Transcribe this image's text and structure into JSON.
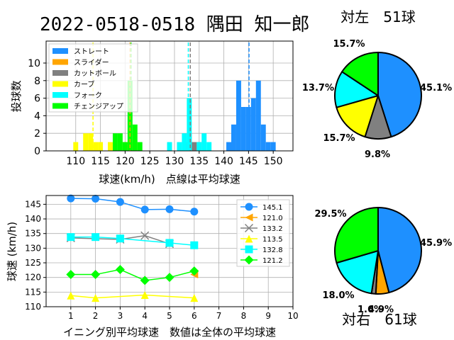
{
  "title": "2022-0518-0518 隅田 知一郎",
  "colors": {
    "straight": "#1e90ff",
    "slider": "#ffa500",
    "cutball": "#808080",
    "curve": "#ffff00",
    "fork": "#00ffff",
    "changeup": "#00ff00"
  },
  "chart_data": [
    {
      "id": "histogram",
      "type": "bar",
      "xlabel": "球速(km/h)　点線は平均球速",
      "ylabel": "投球数",
      "xlim": [
        104,
        154
      ],
      "ylim": [
        0,
        12.5
      ],
      "xticks": [
        110,
        115,
        120,
        125,
        130,
        135,
        140,
        145,
        150
      ],
      "yticks": [
        0,
        2,
        4,
        6,
        8,
        10
      ],
      "legend_position": "top-left",
      "grid": true,
      "series": [
        {
          "name": "ストレート",
          "color_key": "straight",
          "mean": 145.1,
          "bins": [
            [
              141,
              1
            ],
            [
              142,
              3
            ],
            [
              143,
              8
            ],
            [
              144,
              5
            ],
            [
              145,
              5
            ],
            [
              146,
              6
            ],
            [
              147,
              8
            ],
            [
              148,
              3
            ],
            [
              149,
              1
            ],
            [
              150,
              1
            ]
          ]
        },
        {
          "name": "スライダー",
          "color_key": "slider",
          "mean": 121.0,
          "bins": [
            [
              120,
              1
            ],
            [
              121,
              1
            ],
            [
              122,
              1
            ]
          ]
        },
        {
          "name": "カットボール",
          "color_key": "cutball",
          "mean": 133.2,
          "bins": [
            [
              132,
              1
            ],
            [
              133,
              2
            ],
            [
              134,
              1
            ],
            [
              135,
              1
            ]
          ]
        },
        {
          "name": "カーブ",
          "color_key": "curve",
          "mean": 113.5,
          "bins": [
            [
              110,
              1
            ],
            [
              112,
              2
            ],
            [
              113,
              2
            ],
            [
              114,
              1
            ],
            [
              115,
              1
            ],
            [
              117,
              1
            ]
          ]
        },
        {
          "name": "フォーク",
          "color_key": "fork",
          "mean": 132.8,
          "bins": [
            [
              129,
              1
            ],
            [
              131,
              1
            ],
            [
              132,
              2
            ],
            [
              133,
              6
            ],
            [
              135,
              1
            ],
            [
              136,
              2
            ],
            [
              137,
              1
            ]
          ]
        },
        {
          "name": "チェンジアップ",
          "color_key": "changeup",
          "mean": 121.2,
          "bins": [
            [
              118,
              2
            ],
            [
              119,
              2
            ],
            [
              120,
              1
            ],
            [
              121,
              8
            ],
            [
              122,
              3
            ],
            [
              123,
              1
            ]
          ]
        }
      ]
    },
    {
      "id": "inning-averages",
      "type": "line",
      "xlabel": "イニング別平均球速　数値は全体の平均球速",
      "ylabel": "球速 (km/h)",
      "xlim": [
        0,
        10
      ],
      "ylim": [
        110,
        148
      ],
      "xticks": [
        1,
        2,
        3,
        4,
        5,
        6,
        7,
        8,
        9,
        10
      ],
      "yticks": [
        110,
        115,
        120,
        125,
        130,
        135,
        140,
        145
      ],
      "legend_position": "top-right",
      "grid": true,
      "series": [
        {
          "name": "145.1",
          "color_key": "straight",
          "marker": "circle",
          "points": [
            [
              1,
              147.0
            ],
            [
              2,
              146.9
            ],
            [
              3,
              145.8
            ],
            [
              4,
              143.2
            ],
            [
              5,
              143.3
            ],
            [
              6,
              142.5
            ]
          ]
        },
        {
          "name": "121.0",
          "color_key": "slider",
          "marker": "triangle-left",
          "points": [
            [
              6,
              121.0
            ]
          ]
        },
        {
          "name": "133.2",
          "color_key": "cutball",
          "marker": "x",
          "points": [
            [
              1,
              133.5
            ],
            [
              3,
              133.0
            ],
            [
              4,
              134.3
            ],
            [
              5,
              131.5
            ]
          ]
        },
        {
          "name": "113.5",
          "color_key": "curve",
          "marker": "triangle-up",
          "points": [
            [
              1,
              113.8
            ],
            [
              2,
              113.0
            ],
            [
              4,
              114.0
            ],
            [
              6,
              113.0
            ]
          ]
        },
        {
          "name": "132.8",
          "color_key": "fork",
          "marker": "square",
          "points": [
            [
              1,
              133.8
            ],
            [
              2,
              133.8
            ],
            [
              3,
              133.3
            ],
            [
              5,
              131.8
            ],
            [
              6,
              131.0
            ]
          ]
        },
        {
          "name": "121.2",
          "color_key": "changeup",
          "marker": "diamond",
          "points": [
            [
              1,
              121.0
            ],
            [
              2,
              121.0
            ],
            [
              3,
              122.7
            ],
            [
              4,
              119.0
            ],
            [
              5,
              120.0
            ],
            [
              6,
              122.2
            ]
          ]
        }
      ]
    },
    {
      "id": "pie-left",
      "type": "pie",
      "title": "対左　51球",
      "slices": [
        {
          "label": "45.1%",
          "value": 45.1,
          "color_key": "straight"
        },
        {
          "label": "9.8%",
          "value": 9.8,
          "color_key": "cutball"
        },
        {
          "label": "15.7%",
          "value": 15.7,
          "color_key": "curve"
        },
        {
          "label": "13.7%",
          "value": 13.7,
          "color_key": "fork"
        },
        {
          "label": "15.7%",
          "value": 15.7,
          "color_key": "changeup"
        }
      ]
    },
    {
      "id": "pie-right",
      "type": "pie",
      "title": "対右　61球",
      "slices": [
        {
          "label": "45.9%",
          "value": 45.9,
          "color_key": "straight"
        },
        {
          "label": "4.9%",
          "value": 4.9,
          "color_key": "slider"
        },
        {
          "label": "1.6%",
          "value": 1.6,
          "color_key": "cutball"
        },
        {
          "label": "18.0%",
          "value": 18.0,
          "color_key": "fork"
        },
        {
          "label": "29.5%",
          "value": 29.5,
          "color_key": "changeup"
        }
      ]
    }
  ]
}
